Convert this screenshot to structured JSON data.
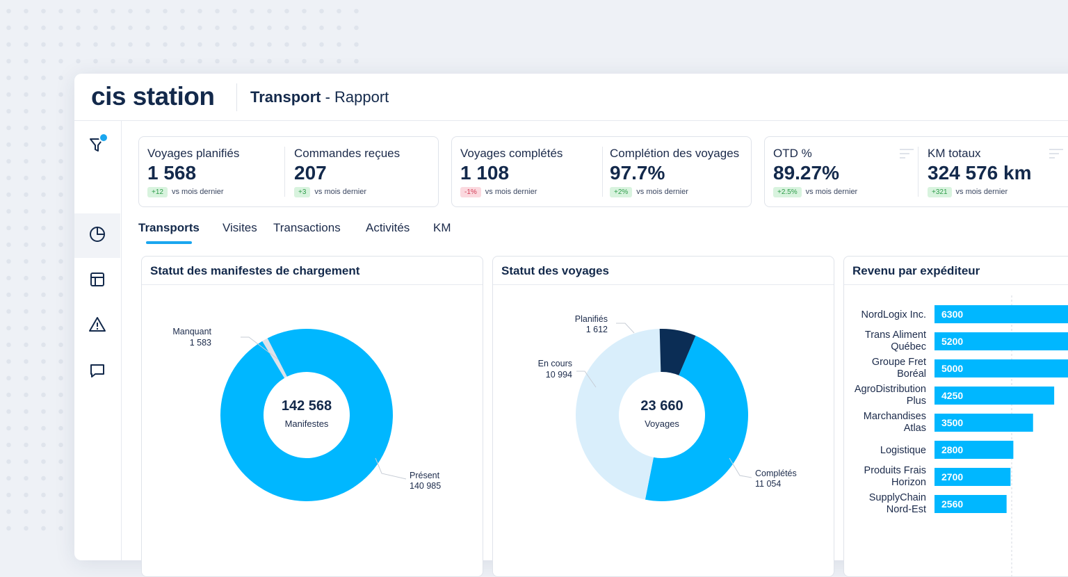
{
  "app": {
    "brand": "cis station",
    "title_bold": "Transport",
    "title_rest": " - Rapport"
  },
  "colors": {
    "accent": "#1aa6ef",
    "chart_primary": "#00b7ff",
    "chart_light": "#d9eefb",
    "chart_dark": "#0b2d55",
    "chart_grey": "#dde2ea",
    "positive": "#2e9d4a",
    "negative": "#d23c55"
  },
  "sidebar": {
    "items": [
      {
        "name": "filter-icon"
      },
      {
        "name": "pie-chart-icon"
      },
      {
        "name": "table-icon"
      },
      {
        "name": "alert-icon"
      },
      {
        "name": "chat-icon"
      }
    ]
  },
  "kpis": [
    {
      "label": "Voyages planifiés",
      "value": "1 568",
      "delta": "+12",
      "delta_type": "pos",
      "delta_text": "vs mois dernier"
    },
    {
      "label": "Commandes reçues",
      "value": "207",
      "delta": "+3",
      "delta_type": "pos",
      "delta_text": "vs mois dernier"
    },
    {
      "label": "Voyages complétés",
      "value": "1 108",
      "delta": "-1%",
      "delta_type": "neg",
      "delta_text": "vs mois dernier"
    },
    {
      "label": "Complétion des voyages",
      "value": "97.7%",
      "delta": "+2%",
      "delta_type": "pos",
      "delta_text": "vs mois dernier"
    },
    {
      "label": "OTD %",
      "value": "89.27%",
      "delta": "+2.5%",
      "delta_type": "pos",
      "delta_text": "vs mois dernier"
    },
    {
      "label": "KM totaux",
      "value": "324 576 km",
      "delta": "+321",
      "delta_type": "pos",
      "delta_text": "vs mois dernier"
    }
  ],
  "tabs": [
    {
      "label": "Transports",
      "active": true
    },
    {
      "label": "Visites",
      "active": false
    },
    {
      "label": "Transactions",
      "active": false
    },
    {
      "label": "Activités",
      "active": false
    },
    {
      "label": "KM",
      "active": false
    }
  ],
  "panels": {
    "manifestes": {
      "title": "Statut des manifestes de chargement"
    },
    "voyages": {
      "title": "Statut des voyages"
    },
    "revenu": {
      "title": "Revenu par expéditeur"
    }
  },
  "chart_data": [
    {
      "type": "pie",
      "title": "Statut des manifestes de chargement",
      "center_value": "142 568",
      "center_label": "Manifestes",
      "slices": [
        {
          "label": "Présent",
          "value": 140985,
          "value_text": "140 985",
          "color": "#00b7ff"
        },
        {
          "label": "Manquant",
          "value": 1583,
          "value_text": "1 583",
          "color": "#dde2ea"
        }
      ]
    },
    {
      "type": "pie",
      "title": "Statut des voyages",
      "center_value": "23 660",
      "center_label": "Voyages",
      "slices": [
        {
          "label": "Complétés",
          "value": 11054,
          "value_text": "11 054",
          "color": "#00b7ff"
        },
        {
          "label": "En cours",
          "value": 10994,
          "value_text": "10 994",
          "color": "#d9eefb"
        },
        {
          "label": "Planifiés",
          "value": 1612,
          "value_text": "1 612",
          "color": "#0b2d55"
        }
      ]
    },
    {
      "type": "bar",
      "orientation": "horizontal",
      "title": "Revenu par expéditeur",
      "categories": [
        [
          "NordLogix Inc."
        ],
        [
          "Trans Aliment",
          "Québec"
        ],
        [
          "Groupe Fret",
          "Boréal"
        ],
        [
          "AgroDistribution",
          "Plus"
        ],
        [
          "Marchandises",
          "Atlas"
        ],
        [
          "Logistique"
        ],
        [
          "Produits Frais",
          "Horizon"
        ],
        [
          "SupplyChain",
          "Nord-Est"
        ]
      ],
      "values": [
        6300,
        5200,
        5000,
        4250,
        3500,
        2800,
        2700,
        2560
      ],
      "grid": true
    }
  ]
}
